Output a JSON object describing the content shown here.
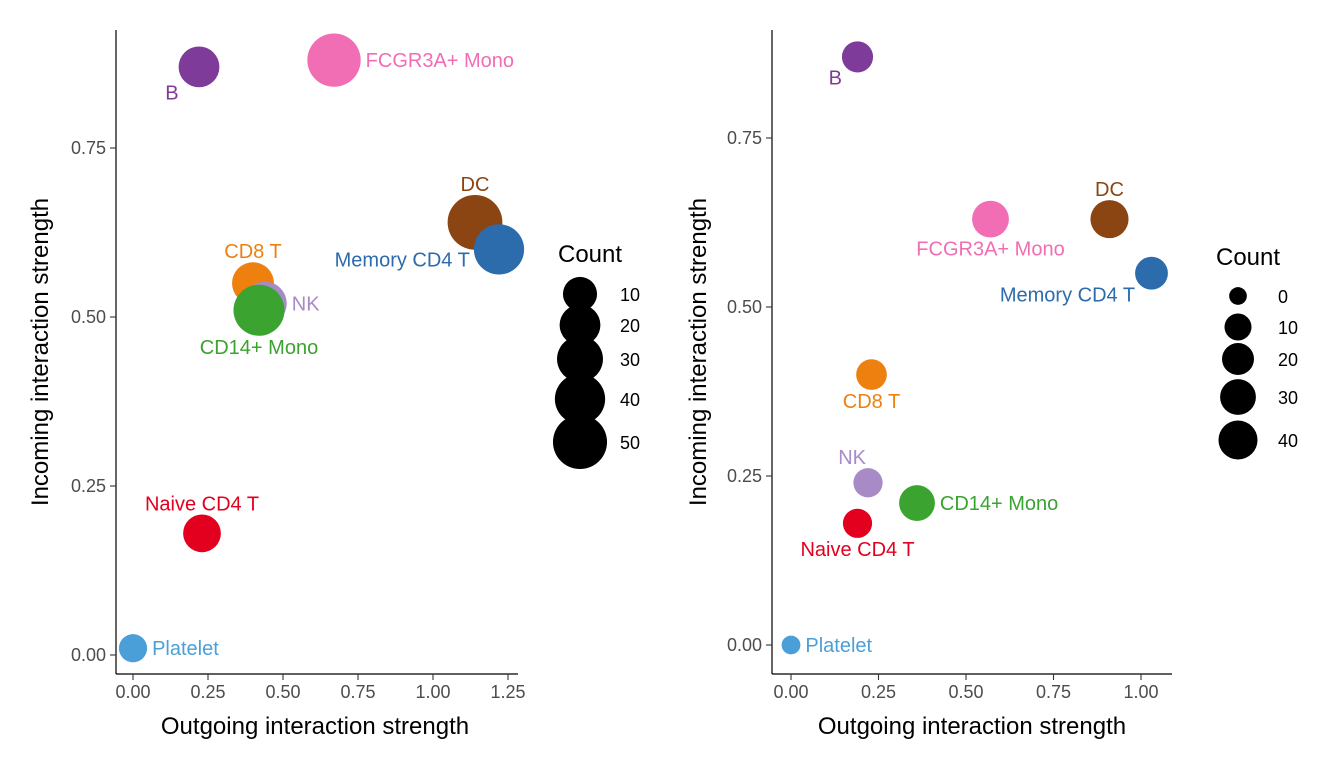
{
  "chart_data": [
    {
      "type": "scatter",
      "xlabel": "Outgoing interaction strength",
      "ylabel": "Incoming interaction strength",
      "xlim": [
        -0.06,
        1.29
      ],
      "ylim": [
        -0.03,
        0.925
      ],
      "xticks": [
        0,
        0.25,
        0.5,
        0.75,
        1.0,
        1.25
      ],
      "xtick_labels": [
        "0.00",
        "0.25",
        "0.50",
        "0.75",
        "1.00",
        "1.25"
      ],
      "yticks": [
        0,
        0.25,
        0.5,
        0.75
      ],
      "ytick_labels": [
        "0.00",
        "0.25",
        "0.50",
        "0.75"
      ],
      "grid": false,
      "legend": {
        "title": "Count",
        "placement": "right",
        "entries": [
          {
            "label": "10",
            "count": 10
          },
          {
            "label": "20",
            "count": 20
          },
          {
            "label": "30",
            "count": 30
          },
          {
            "label": "40",
            "count": 40
          },
          {
            "label": "50",
            "count": 50
          }
        ]
      },
      "points": [
        {
          "label": "B",
          "x": 0.22,
          "y": 0.87,
          "count": 20,
          "color": "#7F3B9A",
          "label_pos": "below-left"
        },
        {
          "label": "FCGR3A+ Mono",
          "x": 0.67,
          "y": 0.88,
          "count": 48,
          "color": "#F16DB4",
          "label_pos": "right"
        },
        {
          "label": "DC",
          "x": 1.14,
          "y": 0.64,
          "count": 52,
          "color": "#8B4513",
          "label_pos": "above"
        },
        {
          "label": "Memory CD4 T",
          "x": 1.22,
          "y": 0.6,
          "count": 40,
          "color": "#2C6BAC",
          "label_pos": "left"
        },
        {
          "label": "CD8 T",
          "x": 0.4,
          "y": 0.55,
          "count": 22,
          "color": "#EE8010",
          "label_pos": "above"
        },
        {
          "label": "NK",
          "x": 0.44,
          "y": 0.52,
          "count": 25,
          "color": "#A88BC6",
          "label_pos": "right"
        },
        {
          "label": "CD14+ Mono",
          "x": 0.42,
          "y": 0.51,
          "count": 42,
          "color": "#3BA330",
          "label_pos": "below"
        },
        {
          "label": "Naive CD4 T",
          "x": 0.23,
          "y": 0.18,
          "count": 15,
          "color": "#E3001E",
          "label_pos": "above"
        },
        {
          "label": "Platelet",
          "x": 0.0,
          "y": 0.01,
          "count": 4,
          "color": "#4B9FD8",
          "label_pos": "right"
        }
      ]
    },
    {
      "type": "scatter",
      "xlabel": "Outgoing interaction strength",
      "ylabel": "Incoming interaction strength",
      "xlim": [
        -0.05,
        1.085
      ],
      "ylim": [
        -0.03,
        0.915
      ],
      "xticks": [
        0,
        0.25,
        0.5,
        0.75,
        1.0
      ],
      "xtick_labels": [
        "0.00",
        "0.25",
        "0.50",
        "0.75",
        "1.00"
      ],
      "yticks": [
        0,
        0.25,
        0.5,
        0.75
      ],
      "ytick_labels": [
        "0.00",
        "0.25",
        "0.50",
        "0.75"
      ],
      "grid": false,
      "legend": {
        "title": "Count",
        "placement": "right",
        "entries": [
          {
            "label": "0",
            "count": 0
          },
          {
            "label": "10",
            "count": 10
          },
          {
            "label": "20",
            "count": 20
          },
          {
            "label": "30",
            "count": 30
          },
          {
            "label": "40",
            "count": 40
          }
        ]
      },
      "points": [
        {
          "label": "B",
          "x": 0.19,
          "y": 0.87,
          "count": 18,
          "color": "#7F3B9A",
          "label_pos": "below-left"
        },
        {
          "label": "DC",
          "x": 0.91,
          "y": 0.63,
          "count": 37,
          "color": "#8B4513",
          "label_pos": "above"
        },
        {
          "label": "FCGR3A+ Mono",
          "x": 0.57,
          "y": 0.63,
          "count": 33,
          "color": "#F16DB4",
          "label_pos": "below"
        },
        {
          "label": "Memory CD4 T",
          "x": 1.03,
          "y": 0.55,
          "count": 22,
          "color": "#2C6BAC",
          "label_pos": "below-left"
        },
        {
          "label": "CD8 T",
          "x": 0.23,
          "y": 0.4,
          "count": 17,
          "color": "#EE8010",
          "label_pos": "below"
        },
        {
          "label": "NK",
          "x": 0.22,
          "y": 0.24,
          "count": 14,
          "color": "#A88BC6",
          "label_pos": "above-left"
        },
        {
          "label": "CD14+ Mono",
          "x": 0.36,
          "y": 0.21,
          "count": 30,
          "color": "#3BA330",
          "label_pos": "right"
        },
        {
          "label": "Naive CD4 T",
          "x": 0.19,
          "y": 0.18,
          "count": 14,
          "color": "#E3001E",
          "label_pos": "below"
        },
        {
          "label": "Platelet",
          "x": 0.0,
          "y": 0.0,
          "count": 1,
          "color": "#4B9FD8",
          "label_pos": "right"
        }
      ]
    }
  ]
}
